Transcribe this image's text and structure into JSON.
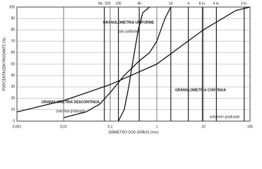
{
  "chart_data": {
    "type": "line",
    "xlabel": "DIÂMETRO DOS GRÃOS (mm)",
    "ylabel": "PORCENTAGEM PASSANTE (%)",
    "xscale": "log",
    "xlim": [
      0.001,
      100
    ],
    "ylim": [
      0,
      100
    ],
    "xticks": [
      {
        "value": 0.001,
        "label": "0,001"
      },
      {
        "value": 0.01,
        "label": "0,01"
      },
      {
        "value": 0.1,
        "label": "0,1"
      },
      1,
      10,
      100
    ],
    "yticks": [
      0,
      10,
      20,
      30,
      40,
      50,
      60,
      70,
      80,
      90,
      100
    ],
    "top_ticks": [
      {
        "value": 0.075,
        "label": "No. 200"
      },
      {
        "value": 0.15,
        "label": "100"
      },
      {
        "value": 0.42,
        "label": "40"
      },
      {
        "value": 2,
        "label": "10"
      },
      {
        "value": 4.75,
        "label": "4"
      },
      {
        "value": 9.5,
        "label": "8 in."
      },
      {
        "value": 19,
        "label": "4 in."
      },
      {
        "value": 75,
        "label": "3 in."
      }
    ],
    "grid": true,
    "series": [
      {
        "name": "GRANULOMETRIA UNIFORME",
        "note": "solo uniforme",
        "color": "#111111",
        "x": [
          0.15,
          0.2,
          0.25,
          0.3,
          0.4,
          0.5,
          0.7
        ],
        "values": [
          0,
          10,
          30,
          50,
          80,
          95,
          100
        ]
      },
      {
        "name": "GRANULOMETRIA DESCONTINUA",
        "note": "solo mal graduado",
        "color": "#111111",
        "x": [
          0.01,
          0.03,
          0.06,
          0.1,
          0.2,
          0.4,
          0.7,
          1,
          1.5,
          2
        ],
        "values": [
          3,
          8,
          15,
          25,
          40,
          52,
          60,
          70,
          90,
          100
        ]
      },
      {
        "name": "GRANULOMETRIA CONTINUA",
        "note": "solo bem graduado",
        "color": "#111111",
        "x": [
          0.001,
          0.01,
          0.1,
          1,
          10,
          50,
          100
        ],
        "values": [
          8,
          18,
          32,
          50,
          80,
          97,
          100
        ]
      }
    ]
  }
}
